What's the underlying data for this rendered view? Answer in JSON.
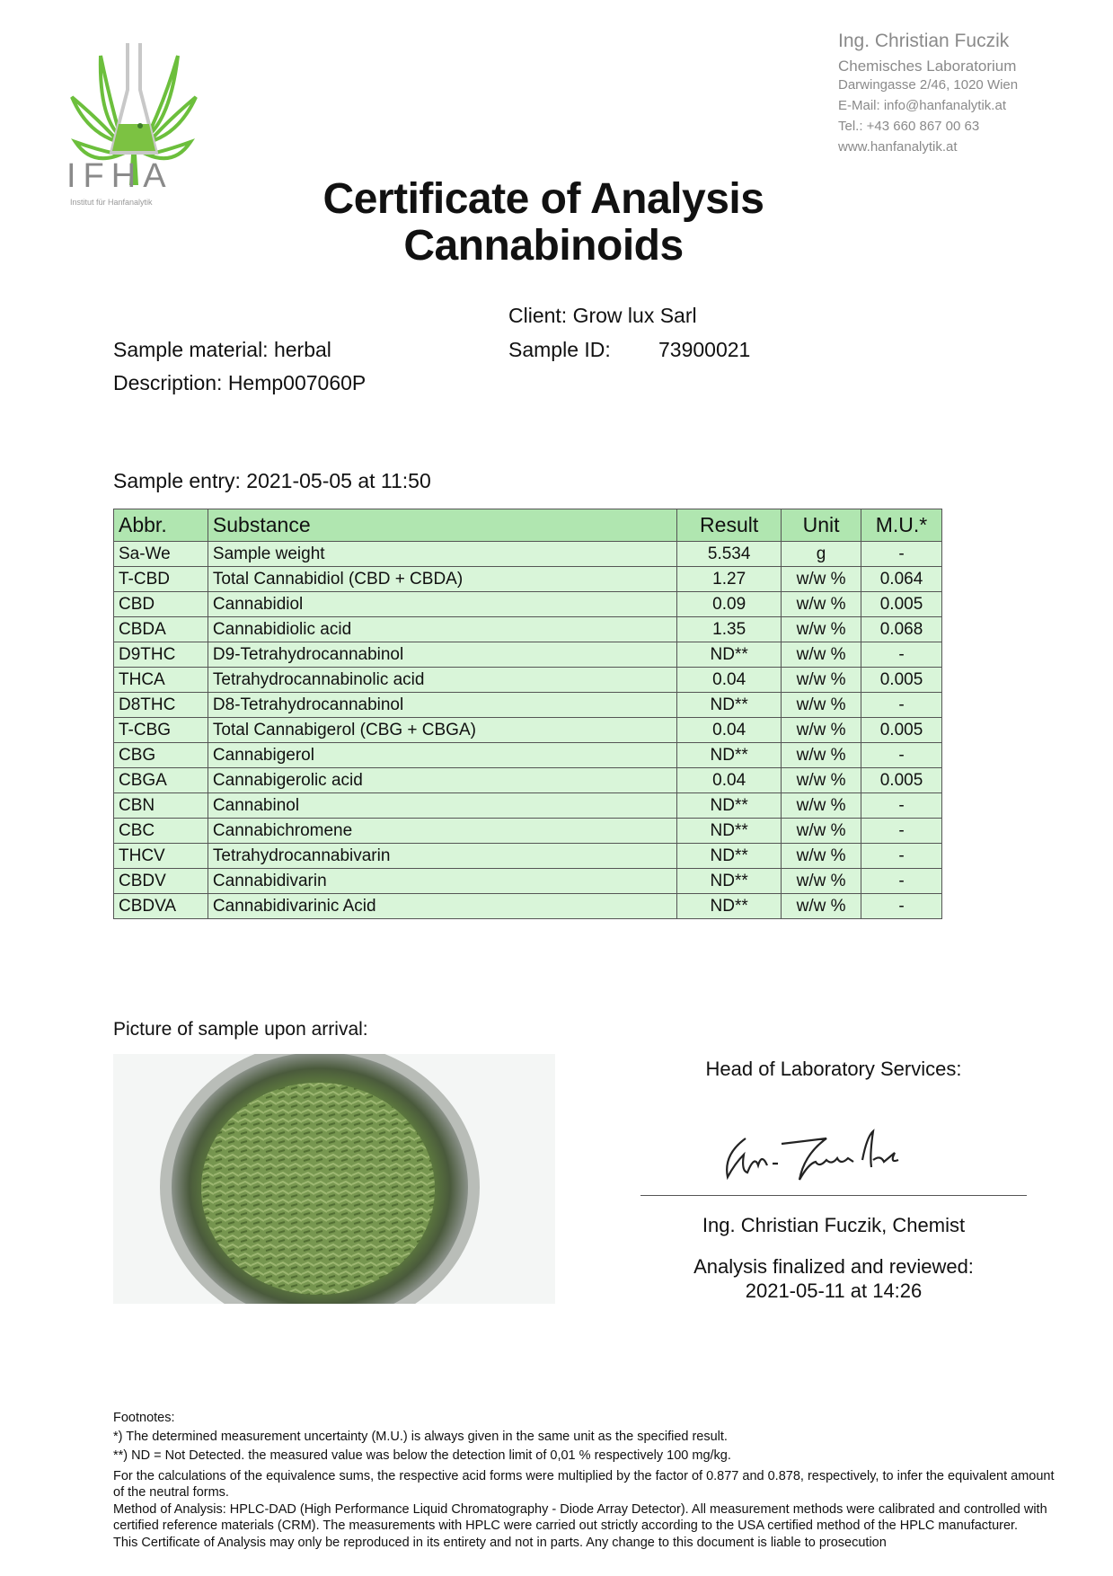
{
  "logo": {
    "text": "IFHA",
    "subtitle": "Institut für Hanfanalytik",
    "colors": {
      "leaf": "#6cbf3c",
      "flask": "#c8c8c8",
      "liquid": "#7cc242"
    }
  },
  "lab": {
    "name": "Ing. Christian Fuczik",
    "type": "Chemisches Laboratorium",
    "address": "Darwingasse 2/46, 1020 Wien",
    "email": "E-Mail: info@hanfanalytik.at",
    "phone": "Tel.: +43 660 867 00 63",
    "web": "www.hanfanalytik.at"
  },
  "title": {
    "line1": "Certificate of Analysis",
    "line2": "Cannabinoids"
  },
  "sample": {
    "client": "Client: Grow lux Sarl",
    "id_label": "Sample ID:",
    "id_value": "73900021",
    "material": "Sample material: herbal",
    "description": "Description: Hemp007060P",
    "entry": "Sample entry: 2021-05-05 at 11:50"
  },
  "table": {
    "headers": [
      "Abbr.",
      "Substance",
      "Result",
      "Unit",
      "M.U.*"
    ],
    "rows": [
      [
        "Sa-We",
        "Sample weight",
        "5.534",
        "g",
        "-"
      ],
      [
        "T-CBD",
        "Total Cannabidiol (CBD + CBDA)",
        "1.27",
        "w/w %",
        "0.064"
      ],
      [
        "CBD",
        "Cannabidiol",
        "0.09",
        "w/w %",
        "0.005"
      ],
      [
        "CBDA",
        "Cannabidiolic acid",
        "1.35",
        "w/w %",
        "0.068"
      ],
      [
        "D9THC",
        "D9-Tetrahydrocannabinol",
        "ND**",
        "w/w %",
        "-"
      ],
      [
        "THCA",
        "Tetrahydrocannabinolic acid",
        "0.04",
        "w/w %",
        "0.005"
      ],
      [
        "D8THC",
        "D8-Tetrahydrocannabinol",
        "ND**",
        "w/w %",
        "-"
      ],
      [
        "T-CBG",
        "Total Cannabigerol (CBG + CBGA)",
        "0.04",
        "w/w %",
        "0.005"
      ],
      [
        "CBG",
        "Cannabigerol",
        "ND**",
        "w/w %",
        "-"
      ],
      [
        "CBGA",
        "Cannabigerolic acid",
        "0.04",
        "w/w %",
        "0.005"
      ],
      [
        "CBN",
        "Cannabinol",
        "ND**",
        "w/w %",
        "-"
      ],
      [
        "CBC",
        "Cannabichromene",
        "ND**",
        "w/w %",
        "-"
      ],
      [
        "THCV",
        "Tetrahydrocannabivarin",
        "ND**",
        "w/w %",
        "-"
      ],
      [
        "CBDV",
        "Cannabidivarin",
        "ND**",
        "w/w %",
        "-"
      ],
      [
        "CBDVA",
        "Cannabidivarinic Acid",
        "ND**",
        "w/w %",
        "-"
      ]
    ],
    "colors": {
      "header": "#b0e6b0",
      "row": "#d9f5d9"
    }
  },
  "picture_label": "Picture of sample upon arrival:",
  "signature": {
    "heading": "Head of Laboratory Services:",
    "signer": "Ing. Christian Fuczik, Chemist",
    "finalized_label": "Analysis finalized and reviewed:",
    "finalized_date": "2021-05-11 at 14:26"
  },
  "footnotes": [
    "Footnotes:",
    "*) The determined measurement uncertainty (M.U.) is always given in the same unit as the specified result.",
    "**) ND = Not Detected. the measured value was below the detection limit of 0,01 % respectively 100 mg/kg.",
    "For the calculations of the equivalence sums, the respective acid forms were multiplied by the factor of 0.877 and 0.878, respectively, to infer the equivalent amount of the neutral forms.",
    "Method of Analysis: HPLC-DAD (High Performance Liquid Chromatography - Diode Array Detector). All measurement methods were calibrated and controlled with certified reference materials (CRM). The measurements with HPLC were carried out strictly according to the USA certified method of the HPLC manufacturer.",
    "This Certificate of Analysis may only be reproduced in its entirety and not in parts. Any change to this document is liable to prosecution"
  ]
}
